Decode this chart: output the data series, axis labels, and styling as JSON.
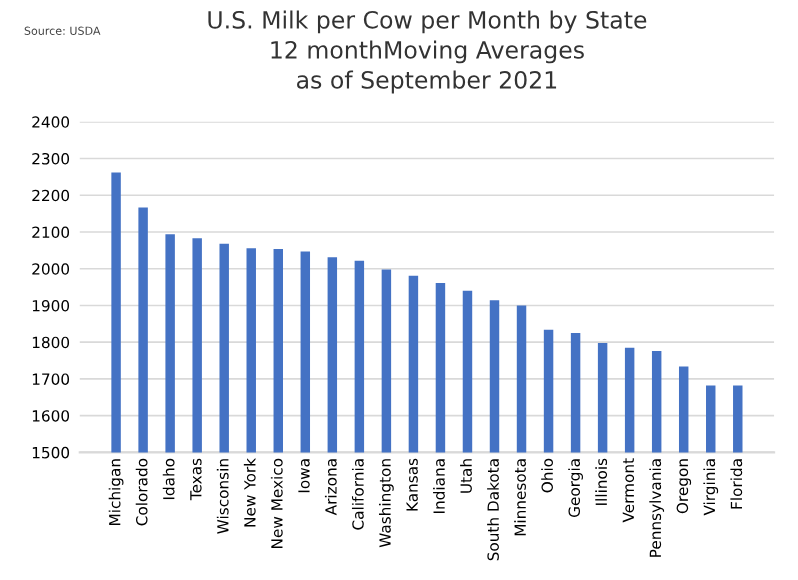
{
  "chart_data": {
    "type": "bar",
    "title": "U.S. Milk per Cow per Month by State\n12 monthMoving Averages\nas of September 2021",
    "annotations": [
      "Source: USDA"
    ],
    "categories": [
      "Michigan",
      "Colorado",
      "Idaho",
      "Texas",
      "Wisconsin",
      "New York",
      "New Mexico",
      "Iowa",
      "Arizona",
      "California",
      "Washington",
      "Kansas",
      "Indiana",
      "Utah",
      "South Dakota",
      "Minnesota",
      "Ohio",
      "Georgia",
      "Illinois",
      "Vermont",
      "Pennsylvania",
      "Oregon",
      "Virginia",
      "Florida"
    ],
    "values": [
      2262,
      2167,
      2094,
      2083,
      2068,
      2056,
      2054,
      2047,
      2031,
      2022,
      1998,
      1981,
      1961,
      1940,
      1914,
      1900,
      1834,
      1825,
      1798,
      1785,
      1776,
      1734,
      1682,
      1682
    ],
    "color": "#4472c4",
    "ylim": [
      1500,
      2400
    ],
    "yticks": [
      1500,
      1600,
      1700,
      1800,
      1900,
      2000,
      2100,
      2200,
      2300,
      2400
    ],
    "grid": "y"
  }
}
